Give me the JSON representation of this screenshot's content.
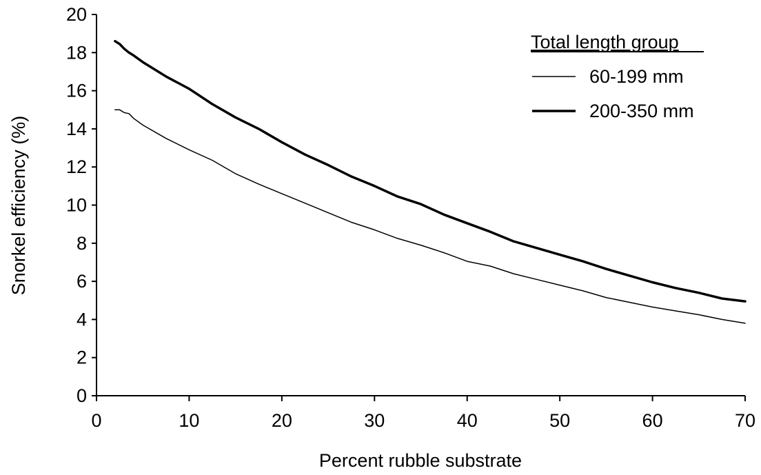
{
  "chart_data": {
    "type": "line",
    "title": "",
    "xlabel": "Percent rubble substrate",
    "ylabel": "Snorkel efficiency (%)",
    "xlim": [
      0,
      70
    ],
    "ylim": [
      0,
      20
    ],
    "x_ticks": [
      0,
      10,
      20,
      30,
      40,
      50,
      60,
      70
    ],
    "y_ticks": [
      0,
      2,
      4,
      6,
      8,
      10,
      12,
      14,
      16,
      18,
      20
    ],
    "grid": false,
    "legend": {
      "title": "Total length group",
      "placement": "top-right"
    },
    "series": [
      {
        "name": "60-199 mm",
        "color": "#000000",
        "line_weight": "thin",
        "x": [
          2,
          2.5,
          3,
          3.5,
          4,
          5,
          7.5,
          10,
          12.5,
          15,
          17.5,
          20,
          22.5,
          25,
          27.5,
          30,
          32.5,
          35,
          37.5,
          40,
          42.5,
          45,
          47.5,
          50,
          52.5,
          55,
          57.5,
          60,
          62.5,
          65,
          67.5,
          70
        ],
        "y": [
          15.0,
          15.0,
          14.85,
          14.8,
          14.55,
          14.2,
          13.5,
          12.9,
          12.35,
          11.65,
          11.1,
          10.6,
          10.1,
          9.6,
          9.1,
          8.7,
          8.25,
          7.9,
          7.5,
          7.05,
          6.8,
          6.4,
          6.1,
          5.8,
          5.5,
          5.15,
          4.9,
          4.65,
          4.45,
          4.25,
          4.0,
          3.8
        ]
      },
      {
        "name": "200-350 mm",
        "color": "#000000",
        "line_weight": "thick",
        "x": [
          2,
          2.5,
          3,
          3.5,
          4,
          5,
          7.5,
          10,
          12.5,
          15,
          17.5,
          20,
          22.5,
          25,
          27.5,
          30,
          32.5,
          35,
          37.5,
          40,
          42.5,
          45,
          47.5,
          50,
          52.5,
          55,
          57.5,
          60,
          62.5,
          65,
          67.5,
          70
        ],
        "y": [
          18.6,
          18.45,
          18.2,
          18.0,
          17.85,
          17.5,
          16.75,
          16.1,
          15.3,
          14.6,
          14.0,
          13.3,
          12.65,
          12.1,
          11.5,
          11.0,
          10.45,
          10.05,
          9.5,
          9.05,
          8.6,
          8.1,
          7.75,
          7.4,
          7.05,
          6.65,
          6.3,
          5.95,
          5.65,
          5.4,
          5.1,
          4.95
        ]
      }
    ]
  }
}
